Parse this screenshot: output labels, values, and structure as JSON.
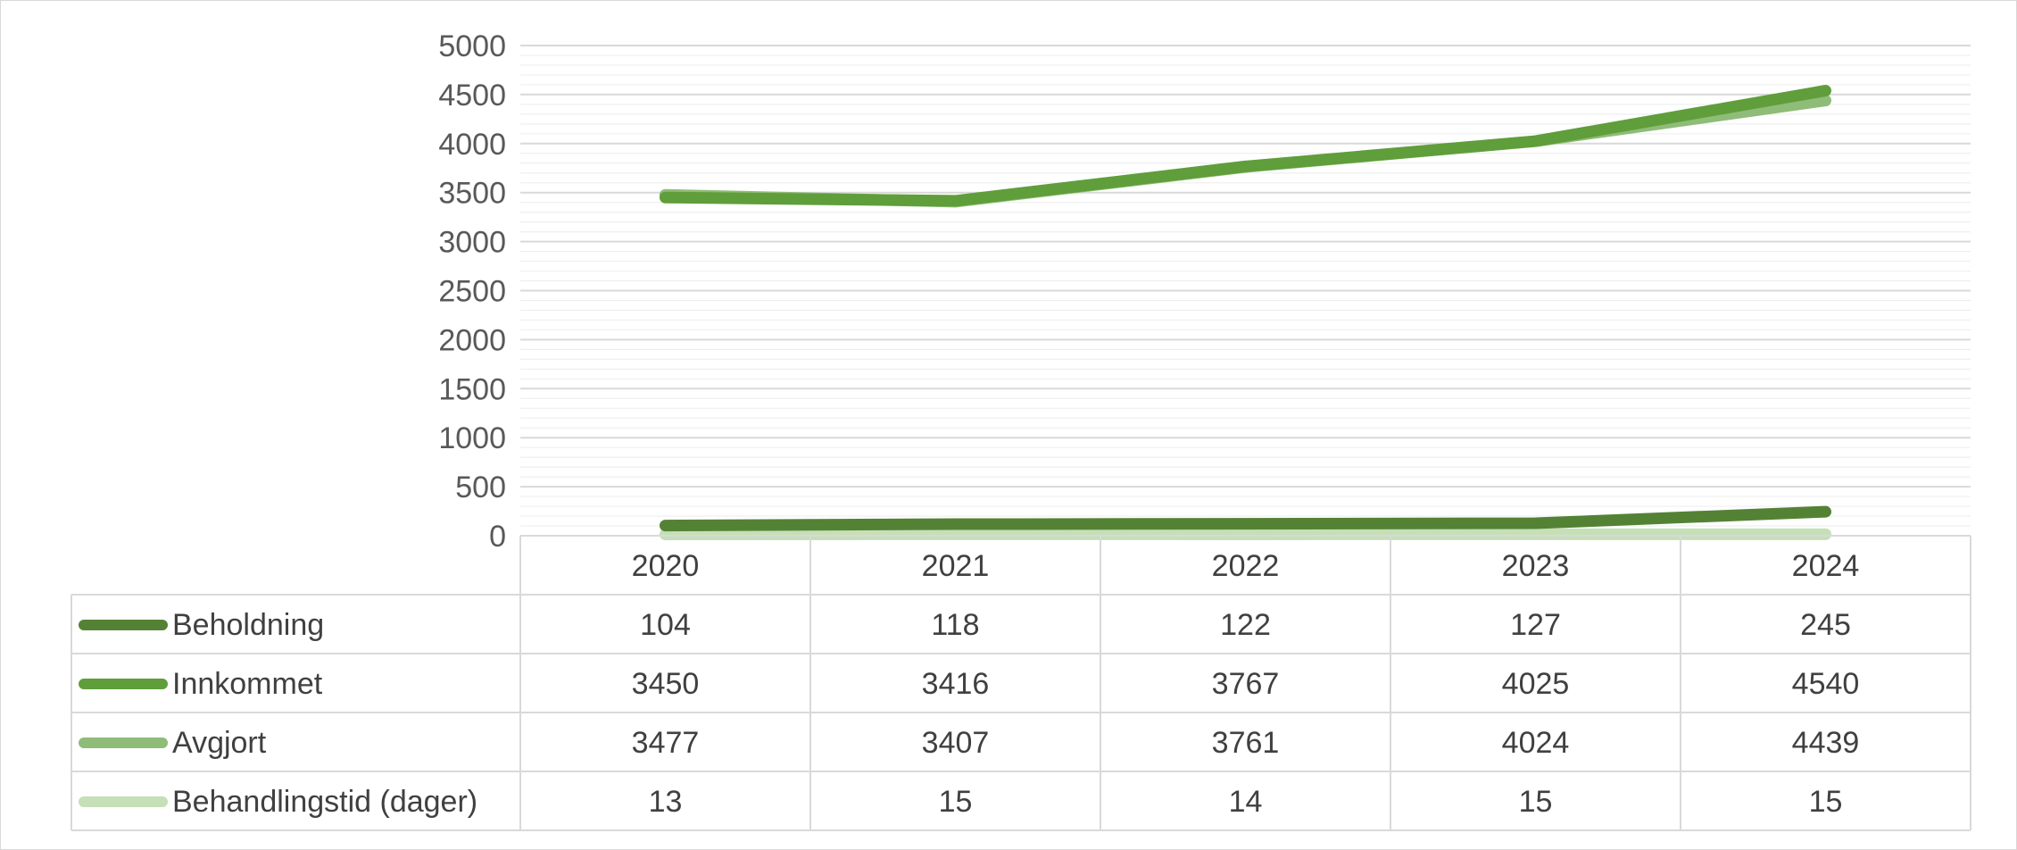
{
  "chart_data": {
    "type": "line",
    "title": "",
    "xlabel": "",
    "ylabel": "",
    "ylim": [
      0,
      5000
    ],
    "y_ticks": [
      0,
      500,
      1000,
      1500,
      2000,
      2500,
      3000,
      3500,
      4000,
      4500,
      5000
    ],
    "y_minor_step": 100,
    "grid": true,
    "legend": "data-table-left",
    "categories": [
      "2020",
      "2021",
      "2022",
      "2023",
      "2024"
    ],
    "series": [
      {
        "name": "Beholdning",
        "values": [
          104,
          118,
          122,
          127,
          245
        ],
        "color": "#548235"
      },
      {
        "name": "Innkommet",
        "values": [
          3450,
          3416,
          3767,
          4025,
          4540
        ],
        "color": "#5f9e3b"
      },
      {
        "name": "Avgjort",
        "values": [
          3477,
          3407,
          3761,
          4024,
          4439
        ],
        "color": "#8fbc78"
      },
      {
        "name": "Behandlingstid (dager)",
        "values": [
          13,
          15,
          14,
          15,
          15
        ],
        "color": "#c5dfb7"
      }
    ]
  }
}
